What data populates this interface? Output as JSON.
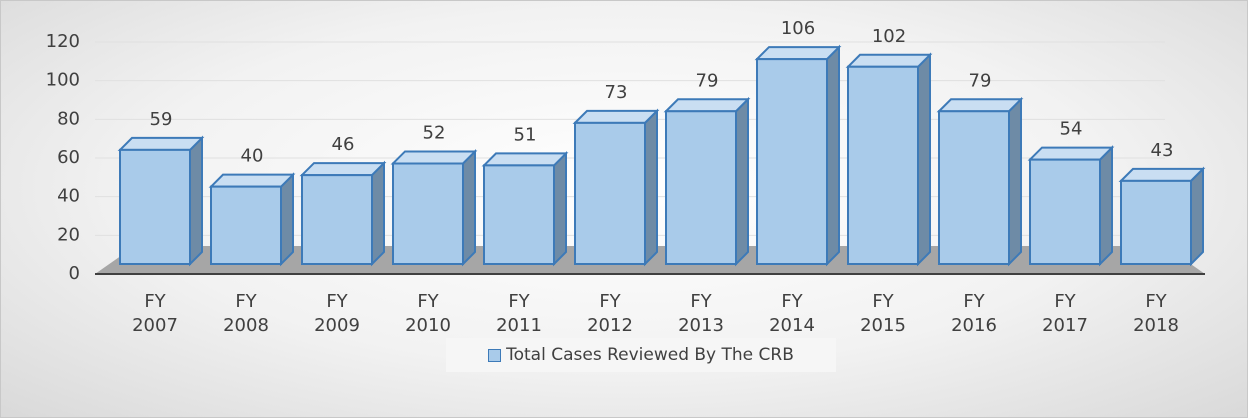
{
  "chart_data": {
    "type": "bar",
    "categories": [
      "FY 2007",
      "FY 2008",
      "FY 2009",
      "FY 2010",
      "FY 2011",
      "FY 2012",
      "FY 2013",
      "FY 2014",
      "FY 2015",
      "FY 2016",
      "FY 2017",
      "FY 2018"
    ],
    "series": [
      {
        "name": "Total Cases Reviewed By The CRB",
        "color": "#a9cbea",
        "values": [
          59,
          40,
          46,
          52,
          51,
          73,
          79,
          106,
          102,
          79,
          54,
          43
        ]
      }
    ],
    "ylim": [
      0,
      120
    ],
    "yticks": [
      0,
      20,
      40,
      60,
      80,
      100,
      120
    ],
    "grid": true,
    "legend": "bottom"
  }
}
